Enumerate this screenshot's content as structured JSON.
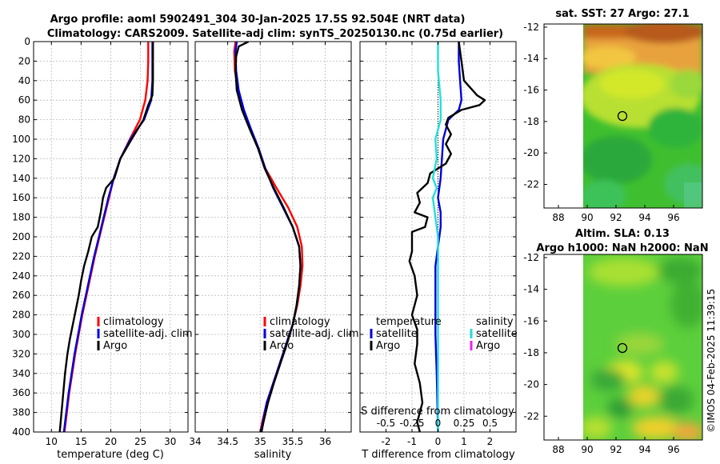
{
  "title_line1": "Argo profile: aoml 5902491_304 30-Jan-2025 17.5S 92.504E (NRT data)",
  "title_line2": "Climatology: CARS2009. Satellite-adj clim: synTS_20250130.nc (0.75d earlier)",
  "credit": "©IMOS 04-Feb-2025 11:39:15",
  "colors": {
    "climatology": "#ff0000",
    "satellite": "#0000dd",
    "argo": "#000000",
    "salinity_sat": "#22dddd",
    "salinity_argo": "#ee22ee"
  },
  "chart_data": [
    {
      "id": "temperature",
      "type": "line",
      "xlabel": "temperature (deg C)",
      "xlim": [
        7,
        33
      ],
      "xticks": [
        10,
        15,
        20,
        25,
        30
      ],
      "xtick_labels": [
        "10",
        "15",
        "20",
        "25",
        "30"
      ],
      "ylim": [
        400,
        0
      ],
      "yticks": [
        0,
        20,
        40,
        60,
        80,
        100,
        120,
        140,
        160,
        180,
        200,
        220,
        240,
        260,
        280,
        300,
        320,
        340,
        360,
        380,
        400
      ],
      "ytick_labels": [
        "0",
        "20",
        "40",
        "60",
        "80",
        "100",
        "120",
        "140",
        "160",
        "180",
        "200",
        "220",
        "240",
        "260",
        "280",
        "300",
        "320",
        "340",
        "360",
        "380",
        "400"
      ],
      "legend": [
        "climatology",
        "satellite-adj. clim",
        "Argo"
      ],
      "series": [
        {
          "name": "climatology",
          "color": "#ff0000",
          "points": [
            [
              26.3,
              0
            ],
            [
              26.3,
              20
            ],
            [
              26.2,
              40
            ],
            [
              25.8,
              60
            ],
            [
              24.9,
              80
            ],
            [
              23.2,
              100
            ],
            [
              21.6,
              120
            ],
            [
              20.5,
              140
            ],
            [
              19.7,
              160
            ],
            [
              18.9,
              180
            ],
            [
              18.1,
              200
            ],
            [
              17.3,
              220
            ],
            [
              16.6,
              240
            ],
            [
              15.9,
              260
            ],
            [
              15.2,
              280
            ],
            [
              14.6,
              300
            ],
            [
              14.0,
              320
            ],
            [
              13.5,
              340
            ],
            [
              13.0,
              360
            ],
            [
              12.6,
              380
            ],
            [
              12.2,
              400
            ]
          ]
        },
        {
          "name": "satellite-adj. clim",
          "color": "#0000dd",
          "points": [
            [
              27.0,
              0
            ],
            [
              27.0,
              20
            ],
            [
              27.0,
              40
            ],
            [
              26.8,
              60
            ],
            [
              25.6,
              80
            ],
            [
              23.3,
              100
            ],
            [
              21.6,
              120
            ],
            [
              20.5,
              140
            ],
            [
              19.6,
              160
            ],
            [
              18.8,
              180
            ],
            [
              18.0,
              200
            ],
            [
              17.2,
              220
            ],
            [
              16.5,
              240
            ],
            [
              15.8,
              260
            ],
            [
              15.1,
              280
            ],
            [
              14.5,
              300
            ],
            [
              13.9,
              320
            ],
            [
              13.4,
              340
            ],
            [
              12.9,
              360
            ],
            [
              12.5,
              380
            ],
            [
              12.1,
              400
            ]
          ]
        },
        {
          "name": "Argo",
          "color": "#000000",
          "points": [
            [
              27.1,
              0
            ],
            [
              27.1,
              20
            ],
            [
              27.1,
              40
            ],
            [
              27.0,
              55
            ],
            [
              26.3,
              65
            ],
            [
              25.5,
              80
            ],
            [
              23.5,
              100
            ],
            [
              21.6,
              120
            ],
            [
              20.6,
              140
            ],
            [
              19.2,
              150
            ],
            [
              18.7,
              160
            ],
            [
              18.3,
              175
            ],
            [
              17.8,
              190
            ],
            [
              16.8,
              200
            ],
            [
              16.2,
              215
            ],
            [
              15.5,
              230
            ],
            [
              15.0,
              245
            ],
            [
              14.6,
              260
            ],
            [
              14.1,
              275
            ],
            [
              13.6,
              290
            ],
            [
              13.1,
              305
            ],
            [
              12.7,
              320
            ],
            [
              12.3,
              340
            ],
            [
              12.0,
              360
            ],
            [
              11.7,
              380
            ],
            [
              11.4,
              400
            ]
          ]
        }
      ]
    },
    {
      "id": "salinity",
      "type": "line",
      "xlabel": "salinity",
      "xlim": [
        34.0,
        36.4
      ],
      "xticks": [
        34,
        34.5,
        35,
        35.5,
        36
      ],
      "xtick_labels": [
        "34",
        "34.5",
        "35",
        "35.5",
        "36"
      ],
      "ylim": [
        400,
        0
      ],
      "legend": [
        "climatology",
        "satellite-adj. clim",
        "Argo"
      ],
      "series": [
        {
          "name": "climatology",
          "color": "#ff0000",
          "points": [
            [
              34.62,
              0
            ],
            [
              34.6,
              10
            ],
            [
              34.61,
              30
            ],
            [
              34.66,
              50
            ],
            [
              34.74,
              70
            ],
            [
              34.85,
              90
            ],
            [
              34.97,
              110
            ],
            [
              35.08,
              130
            ],
            [
              35.25,
              150
            ],
            [
              35.43,
              170
            ],
            [
              35.57,
              190
            ],
            [
              35.64,
              210
            ],
            [
              35.65,
              230
            ],
            [
              35.62,
              250
            ],
            [
              35.57,
              270
            ],
            [
              35.5,
              290
            ],
            [
              35.4,
              310
            ],
            [
              35.3,
              330
            ],
            [
              35.2,
              350
            ],
            [
              35.1,
              370
            ],
            [
              35.03,
              390
            ],
            [
              35.0,
              400
            ]
          ]
        },
        {
          "name": "satellite-adj. clim",
          "color": "#0000dd",
          "points": [
            [
              34.64,
              0
            ],
            [
              34.62,
              10
            ],
            [
              34.63,
              30
            ],
            [
              34.67,
              50
            ],
            [
              34.75,
              70
            ],
            [
              34.86,
              90
            ],
            [
              34.98,
              110
            ],
            [
              35.08,
              130
            ],
            [
              35.2,
              150
            ],
            [
              35.35,
              170
            ],
            [
              35.5,
              190
            ],
            [
              35.6,
              210
            ],
            [
              35.62,
              230
            ],
            [
              35.6,
              250
            ],
            [
              35.56,
              270
            ],
            [
              35.5,
              290
            ],
            [
              35.4,
              310
            ],
            [
              35.3,
              330
            ],
            [
              35.2,
              350
            ],
            [
              35.1,
              370
            ],
            [
              35.04,
              390
            ],
            [
              35.01,
              400
            ]
          ]
        },
        {
          "name": "Argo",
          "color": "#000000",
          "points": [
            [
              34.82,
              0
            ],
            [
              34.67,
              5
            ],
            [
              34.63,
              15
            ],
            [
              34.62,
              30
            ],
            [
              34.64,
              50
            ],
            [
              34.72,
              70
            ],
            [
              34.84,
              90
            ],
            [
              34.97,
              110
            ],
            [
              35.07,
              130
            ],
            [
              35.21,
              150
            ],
            [
              35.36,
              170
            ],
            [
              35.5,
              190
            ],
            [
              35.6,
              210
            ],
            [
              35.62,
              230
            ],
            [
              35.6,
              250
            ],
            [
              35.56,
              270
            ],
            [
              35.5,
              290
            ],
            [
              35.41,
              310
            ],
            [
              35.31,
              330
            ],
            [
              35.21,
              350
            ],
            [
              35.12,
              370
            ],
            [
              35.05,
              390
            ],
            [
              35.02,
              400
            ]
          ]
        }
      ]
    },
    {
      "id": "difference",
      "type": "line",
      "xlabel": "T difference from climatology",
      "xlabel_top": "S difference from climatology",
      "xlim": [
        -3,
        3
      ],
      "xticks": [
        -2,
        -1,
        0,
        1,
        2
      ],
      "xtick_labels": [
        "-2",
        "-1",
        "0",
        "1",
        "2"
      ],
      "s_ticks": [
        -0.5,
        -0.25,
        0,
        0.25,
        0.5
      ],
      "s_tick_labels": [
        "-0.5",
        "-0.25",
        "0",
        "0.25",
        "0.5"
      ],
      "s_scale": 4,
      "ylim": [
        400,
        0
      ],
      "legend_temperature": {
        "heading": "temperature",
        "items": [
          "satellite",
          "Argo"
        ]
      },
      "legend_salinity": {
        "heading": "salinity",
        "items": [
          "satellite",
          "Argo"
        ]
      },
      "series": [
        {
          "name": "temperature satellite",
          "color": "#0000dd",
          "points": [
            [
              0.8,
              0
            ],
            [
              0.8,
              20
            ],
            [
              0.85,
              40
            ],
            [
              0.9,
              60
            ],
            [
              0.8,
              70
            ],
            [
              0.4,
              80
            ],
            [
              0.2,
              100
            ],
            [
              0.1,
              140
            ],
            [
              0.0,
              160
            ],
            [
              0.1,
              175
            ],
            [
              0.1,
              190
            ],
            [
              0.0,
              210
            ],
            [
              -0.1,
              230
            ],
            [
              -0.1,
              260
            ],
            [
              -0.1,
              300
            ],
            [
              -0.05,
              340
            ],
            [
              0.0,
              400
            ]
          ]
        },
        {
          "name": "temperature Argo",
          "color": "#000000",
          "points": [
            [
              0.8,
              0
            ],
            [
              0.9,
              20
            ],
            [
              1.0,
              40
            ],
            [
              1.5,
              55
            ],
            [
              1.8,
              60
            ],
            [
              1.6,
              65
            ],
            [
              0.9,
              70
            ],
            [
              0.4,
              78
            ],
            [
              0.3,
              85
            ],
            [
              0.5,
              95
            ],
            [
              0.3,
              105
            ],
            [
              0.5,
              115
            ],
            [
              0.3,
              125
            ],
            [
              -0.3,
              135
            ],
            [
              -0.4,
              145
            ],
            [
              -0.8,
              155
            ],
            [
              -0.7,
              165
            ],
            [
              -0.9,
              175
            ],
            [
              -0.4,
              180
            ],
            [
              -0.5,
              190
            ],
            [
              -1.0,
              195
            ],
            [
              -1.0,
              205
            ],
            [
              -1.0,
              215
            ],
            [
              -1.1,
              225
            ],
            [
              -0.9,
              240
            ],
            [
              -0.8,
              260
            ],
            [
              -1.0,
              280
            ],
            [
              -0.8,
              295
            ],
            [
              -0.8,
              310
            ],
            [
              -0.9,
              330
            ],
            [
              -0.7,
              350
            ],
            [
              -0.6,
              370
            ],
            [
              -0.8,
              390
            ],
            [
              -0.7,
              400
            ]
          ]
        },
        {
          "name": "salinity satellite",
          "color": "#22dddd",
          "points": [
            [
              0.0,
              0
            ],
            [
              0.0,
              30
            ],
            [
              0.1,
              60
            ],
            [
              0.1,
              80
            ],
            [
              -0.1,
              100
            ],
            [
              -0.05,
              120
            ],
            [
              -0.2,
              140
            ],
            [
              -0.05,
              150
            ],
            [
              -0.2,
              160
            ],
            [
              -0.1,
              180
            ],
            [
              0.0,
              200
            ],
            [
              0.0,
              240
            ],
            [
              0.0,
              300
            ],
            [
              0.0,
              360
            ],
            [
              0.0,
              400
            ]
          ]
        },
        {
          "name": "salinity Argo",
          "color": "#ee22ee",
          "points": []
        }
      ]
    },
    {
      "id": "sst_map",
      "type": "heatmap",
      "title": "sat. SST: 27 Argo: 27.1",
      "xlim": [
        87,
        98
      ],
      "ylim": [
        -23.5,
        -11.8
      ],
      "xticks": [
        88,
        90,
        92,
        94,
        96
      ],
      "yticks": [
        -12,
        -14,
        -16,
        -18,
        -20,
        -22
      ],
      "xtick_labels": [
        "88",
        "90",
        "92",
        "94",
        "96"
      ],
      "ytick_labels": [
        "-12",
        "-14",
        "-16",
        "-18",
        "-20",
        "-22"
      ],
      "data_lon_min": 90,
      "argo_position": [
        92.504,
        -17.5
      ]
    },
    {
      "id": "sla_map",
      "type": "heatmap",
      "title_line1": "Altim. SLA: 0.13",
      "title_line2": "Argo h1000: NaN h2000: NaN",
      "xlim": [
        87,
        98
      ],
      "ylim": [
        -23.5,
        -11.8
      ],
      "yticks": [
        -12,
        -14,
        -16,
        -18,
        -20,
        -22
      ],
      "xticks": [
        88,
        90,
        92,
        94,
        96
      ],
      "xtick_labels": [
        "88",
        "90",
        "92",
        "94",
        "96"
      ],
      "ytick_labels": [
        "-12",
        "-14",
        "-16",
        "-18",
        "-20",
        "-22"
      ],
      "data_lon_min": 90,
      "argo_position": [
        92.504,
        -17.5
      ]
    }
  ]
}
